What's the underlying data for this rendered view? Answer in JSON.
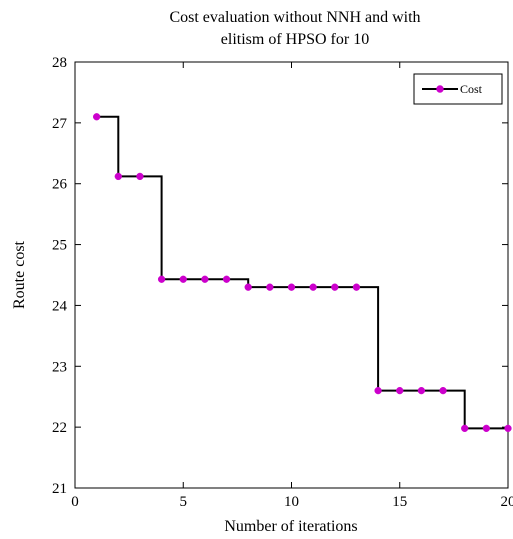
{
  "chart_data": {
    "type": "line",
    "title_lines": [
      "Cost evaluation without NNH and with",
      "elitism of HPSO for 10"
    ],
    "xlabel": "Number of iterations",
    "ylabel": "Route cost",
    "xlim": [
      0,
      20
    ],
    "ylim": [
      21,
      28
    ],
    "xticks": [
      0,
      5,
      10,
      15,
      20
    ],
    "yticks": [
      21,
      22,
      23,
      24,
      25,
      26,
      27,
      28
    ],
    "grid": false,
    "legend_position": "top-right",
    "line_style": "step",
    "series": [
      {
        "name": "Cost",
        "line_color": "#000000",
        "marker_color": "#cc00cc",
        "x": [
          1,
          2,
          3,
          4,
          5,
          6,
          7,
          8,
          9,
          10,
          11,
          12,
          13,
          14,
          15,
          16,
          17,
          18,
          19,
          20
        ],
        "y": [
          27.1,
          26.12,
          26.12,
          24.43,
          24.43,
          24.43,
          24.43,
          24.3,
          24.3,
          24.3,
          24.3,
          24.3,
          24.3,
          22.6,
          22.6,
          22.6,
          22.6,
          21.98,
          21.98,
          21.98
        ]
      }
    ]
  }
}
